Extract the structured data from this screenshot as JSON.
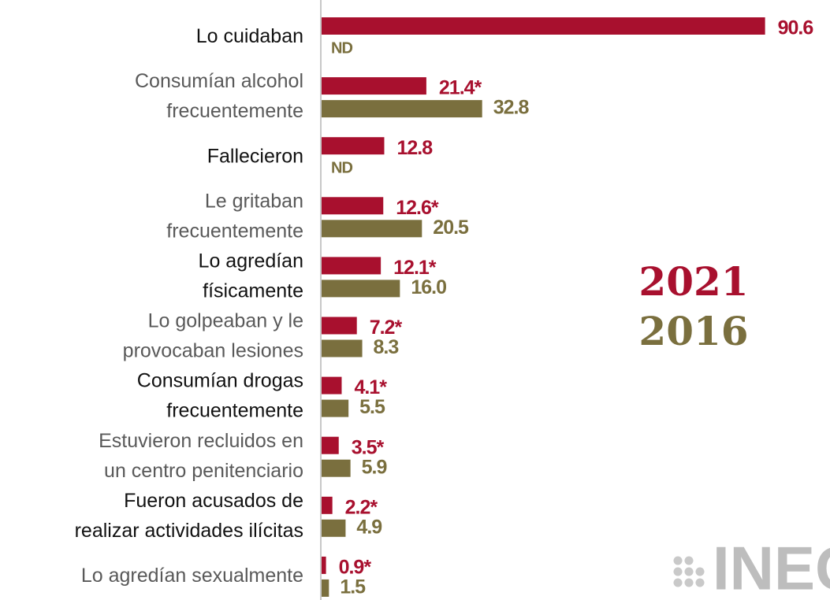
{
  "chart_data": {
    "type": "bar",
    "orientation": "horizontal",
    "categories": [
      [
        "Lo cuidaban"
      ],
      [
        "Consumían alcohol",
        "frecuentemente"
      ],
      [
        "Fallecieron"
      ],
      [
        "Le gritaban",
        "frecuentemente"
      ],
      [
        "Lo agredían",
        "físicamente"
      ],
      [
        "Lo golpeaban y le",
        "provocaban lesiones"
      ],
      [
        "Consumían drogas",
        "frecuentemente"
      ],
      [
        "Estuvieron recluidos en",
        "un centro penitenciario"
      ],
      [
        "Fueron acusados de",
        "realizar actividades ilícitas"
      ],
      [
        "Lo agredían sexualmente"
      ]
    ],
    "series": [
      {
        "name": "2021",
        "color": "#a8102e",
        "values": [
          90.6,
          21.4,
          12.8,
          12.6,
          12.1,
          7.2,
          4.1,
          3.5,
          2.2,
          0.9
        ],
        "value_labels": [
          "90.6",
          "21.4*",
          "12.8",
          "12.6*",
          "12.1*",
          "7.2*",
          "4.1*",
          "3.5*",
          "2.2*",
          "0.9*"
        ]
      },
      {
        "name": "2016",
        "color": "#7a6f3e",
        "values": [
          null,
          32.8,
          null,
          20.5,
          16.0,
          8.3,
          5.5,
          5.9,
          4.9,
          1.5
        ],
        "value_labels": [
          "ND",
          "32.8",
          "ND",
          "20.5",
          "16.0",
          "8.3",
          "5.5",
          "5.9",
          "4.9",
          "1.5"
        ]
      }
    ],
    "xlim": [
      0,
      100
    ],
    "logo": "INEGI"
  }
}
